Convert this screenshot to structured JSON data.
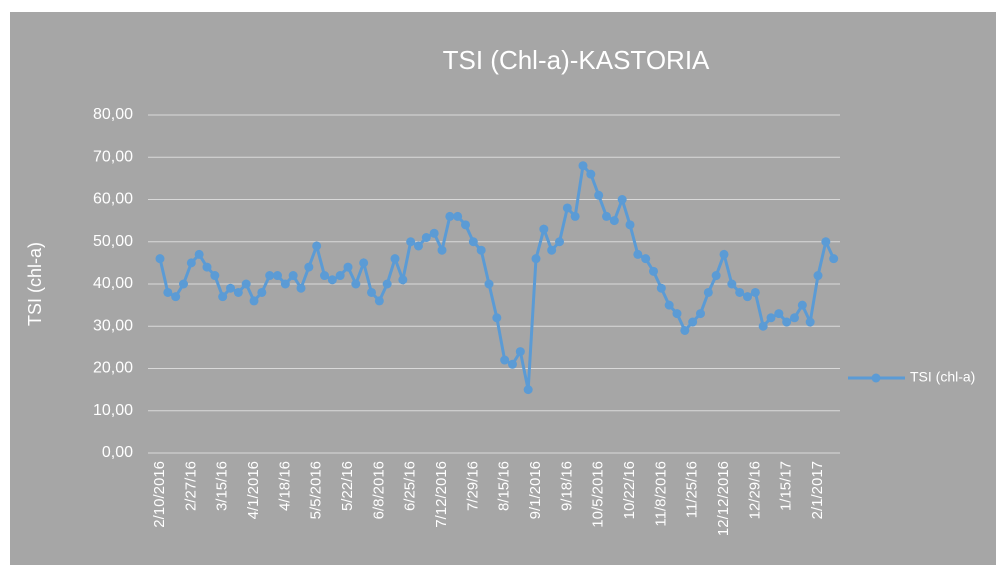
{
  "chart_data": {
    "type": "line",
    "title": "TSI (Chl-a)-KASTORIA",
    "y_label": "TSI (chl-a)",
    "categories": [
      "2/10/2016",
      null,
      null,
      null,
      "2/27/16",
      null,
      null,
      null,
      "3/15/16",
      null,
      null,
      null,
      "4/1/2016",
      null,
      null,
      null,
      "4/18/16",
      null,
      null,
      null,
      "5/5/2016",
      null,
      null,
      null,
      "5/22/16",
      null,
      null,
      null,
      "6/8/2016",
      null,
      null,
      null,
      "6/25/16",
      null,
      null,
      null,
      "7/12/2016",
      null,
      null,
      null,
      "7/29/16",
      null,
      null,
      null,
      "8/15/16",
      null,
      null,
      null,
      "9/1/2016",
      null,
      null,
      null,
      "9/18/16",
      null,
      null,
      null,
      "10/5/2016",
      null,
      null,
      null,
      "10/22/16",
      null,
      null,
      null,
      "11/8/2016",
      null,
      null,
      null,
      "11/25/16",
      null,
      null,
      null,
      "12/12/2016",
      null,
      null,
      null,
      "12/29/16",
      null,
      null,
      null,
      "1/15/17",
      null,
      null,
      null,
      "2/1/2017",
      null,
      null
    ],
    "series": [
      {
        "name": "TSI (chl-a)",
        "color": "#5b9bd5",
        "values": [
          46,
          38,
          37,
          40,
          45,
          47,
          44,
          42,
          37,
          39,
          38,
          40,
          36,
          38,
          42,
          42,
          40,
          42,
          39,
          44,
          49,
          42,
          41,
          42,
          44,
          40,
          45,
          38,
          36,
          40,
          46,
          41,
          50,
          49,
          51,
          52,
          48,
          56,
          56,
          54,
          50,
          48,
          40,
          32,
          22,
          21,
          24,
          15,
          46,
          53,
          48,
          50,
          58,
          56,
          68,
          66,
          61,
          56,
          55,
          60,
          54,
          47,
          46,
          43,
          39,
          35,
          33,
          29,
          31,
          33,
          38,
          42,
          47,
          40,
          38,
          37,
          38,
          30,
          32,
          33,
          31,
          32,
          35,
          31,
          42,
          50,
          46
        ]
      }
    ],
    "ylim": [
      0,
      80
    ],
    "yticks": [
      {
        "value": 0,
        "label": "0,00"
      },
      {
        "value": 10,
        "label": "10,00"
      },
      {
        "value": 20,
        "label": "20,00"
      },
      {
        "value": 30,
        "label": "30,00"
      },
      {
        "value": 40,
        "label": "40,00"
      },
      {
        "value": 50,
        "label": "50,00"
      },
      {
        "value": 60,
        "label": "60,00"
      },
      {
        "value": 70,
        "label": "70,00"
      },
      {
        "value": 80,
        "label": "80,00"
      }
    ],
    "grid": true,
    "legend": "right"
  }
}
